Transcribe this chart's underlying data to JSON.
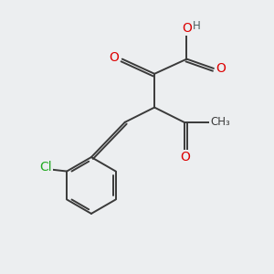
{
  "bg_color": "#eceef0",
  "bond_color": "#3a3a3a",
  "bond_width": 1.4,
  "atom_colors": {
    "O": "#dd0000",
    "Cl": "#22aa22",
    "H": "#506060",
    "C": "#3a3a3a"
  },
  "font_size_atom": 10,
  "font_size_h": 8.5
}
